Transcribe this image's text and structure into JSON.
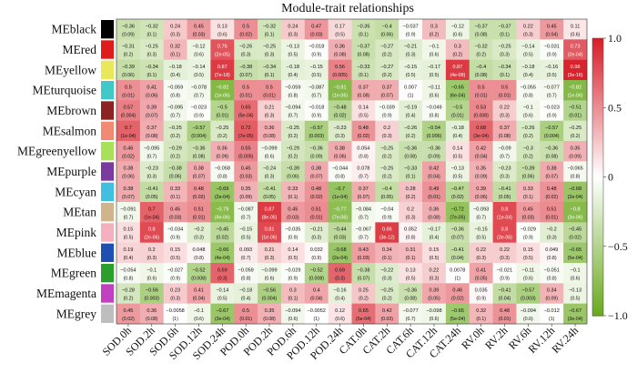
{
  "chart_data": {
    "type": "heatmap",
    "title": "Module-trait relationships",
    "rows": [
      "MEblack",
      "MEred",
      "MEyellow",
      "MEturquoise",
      "MEbrown",
      "MEsalmon",
      "MEgreenyellow",
      "MEpurple",
      "MEcyan",
      "MEtan",
      "MEpink",
      "MEblue",
      "MEgreen",
      "MEmagenta",
      "MEgrey"
    ],
    "row_colors": [
      "#000000",
      "#e01b1b",
      "#e8e85a",
      "#40c8c8",
      "#8b2323",
      "#f08a72",
      "#a8e05a",
      "#7a3aa0",
      "#40c0e0",
      "#d2b48c",
      "#f5b0c0",
      "#1f4fb0",
      "#2aa02a",
      "#c040c0",
      "#bebebe"
    ],
    "columns": [
      "SOD.0h",
      "SOD.2h",
      "SOD.6h",
      "SOD.12h",
      "SOD.24h",
      "POD.0h",
      "POD.2h",
      "POD.6h",
      "POD.12h",
      "POD.24h",
      "CAT.0h",
      "CAT.2h",
      "CAT.6h",
      "CAT.12h",
      "CAT.24h",
      "RV.0h",
      "RV.2h",
      "RV.6h",
      "RV.12h",
      "RV.24h"
    ],
    "values": [
      [
        -0.36,
        -0.32,
        0.24,
        0.45,
        0.13,
        0.5,
        -0.32,
        0.24,
        0.47,
        0.17,
        -0.35,
        -0.4,
        -0.037,
        0.3,
        -0.12,
        -0.37,
        -0.37,
        0.22,
        0.45,
        0.11
      ],
      [
        -0.31,
        -0.25,
        0.32,
        -0.12,
        0.76,
        -0.26,
        -0.25,
        -0.13,
        -0.018,
        0.36,
        -0.37,
        -0.27,
        -0.21,
        -0.1,
        0.3,
        -0.32,
        -0.25,
        -0.14,
        -0.031,
        0.73
      ],
      [
        -0.39,
        -0.34,
        -0.18,
        -0.14,
        0.87,
        -0.38,
        -0.34,
        -0.18,
        -0.15,
        0.56,
        -0.33,
        -0.27,
        -0.15,
        -0.17,
        0.87,
        -0.4,
        -0.34,
        -0.18,
        -0.16,
        0.98
      ],
      [
        0.5,
        0.41,
        -0.059,
        -0.078,
        -0.82,
        0.5,
        0.5,
        -0.059,
        -0.087,
        -0.81,
        0.37,
        0.37,
        0.007,
        -0.11,
        -0.65,
        0.5,
        0.5,
        -0.055,
        -0.077,
        -0.82
      ],
      [
        0.57,
        0.39,
        -0.095,
        -0.023,
        -0.5,
        0.65,
        0.21,
        -0.094,
        -0.018,
        -0.48,
        0.14,
        -0.039,
        -0.19,
        -0.049,
        -0.5,
        0.53,
        0.22,
        -0.1,
        -0.023,
        -0.51
      ],
      [
        0.7,
        0.37,
        -0.25,
        -0.57,
        -0.25,
        0.72,
        0.36,
        -0.25,
        -0.57,
        -0.23,
        0.48,
        0.2,
        -0.26,
        -0.54,
        -0.18,
        0.68,
        0.37,
        -0.26,
        -0.57,
        -0.25
      ],
      [
        0.46,
        -0.095,
        -0.29,
        -0.36,
        0.36,
        0.55,
        -0.099,
        -0.29,
        -0.36,
        0.38,
        0.054,
        -0.25,
        -0.36,
        -0.36,
        0.14,
        0.42,
        -0.09,
        -0.3,
        -0.36,
        0.35
      ],
      [
        0.38,
        -0.23,
        -0.38,
        0.38,
        -0.058,
        0.45,
        -0.24,
        -0.39,
        0.38,
        -0.044,
        0.078,
        -0.25,
        -0.33,
        0.42,
        -0.13,
        0.35,
        -0.23,
        -0.39,
        0.38,
        -0.065
      ],
      [
        0.38,
        -0.41,
        0.33,
        0.48,
        -0.69,
        0.35,
        -0.41,
        0.33,
        0.48,
        -0.7,
        0.37,
        -0.4,
        0.28,
        0.49,
        -0.47,
        0.39,
        -0.41,
        0.33,
        0.48,
        -0.68
      ],
      [
        -0.091,
        0.7,
        0.45,
        0.51,
        -0.79,
        -0.087,
        0.87,
        0.45,
        0.51,
        -0.77,
        -0.084,
        -0.04,
        0.2,
        0.36,
        -0.72,
        -0.093,
        0.8,
        0.45,
        0.51,
        -0.8
      ],
      [
        0.15,
        0.8,
        -0.034,
        -0.2,
        -0.45,
        -0.15,
        0.81,
        -0.035,
        -0.21,
        -0.44,
        -0.067,
        0.86,
        0.052,
        -0.17,
        -0.36,
        -0.15,
        0.8,
        -0.029,
        -0.2,
        -0.45
      ],
      [
        0.19,
        0.2,
        0.15,
        0.048,
        -0.66,
        0.093,
        0.21,
        0.14,
        0.032,
        -0.68,
        0.43,
        0.34,
        0.31,
        0.15,
        -0.41,
        0.22,
        0.22,
        0.15,
        0.049,
        -0.65
      ],
      [
        -0.054,
        -0.1,
        -0.027,
        -0.52,
        0.69,
        -0.059,
        -0.099,
        -0.029,
        -0.52,
        0.69,
        -0.38,
        -0.22,
        0.13,
        0.22,
        0.0078,
        0.41,
        -0.021,
        -0.11,
        -0.051,
        -0.1
      ],
      [
        -0.28,
        -0.56,
        0.23,
        0.41,
        -0.14,
        -0.18,
        -0.56,
        0.3,
        0.4,
        -0.16,
        0.25,
        -0.25,
        -0.36,
        0.39,
        0.46,
        0.035,
        -0.41,
        -0.57,
        0.34,
        -0.13
      ],
      [
        0.45,
        0.36,
        -0.0058,
        -0.1,
        -0.67,
        0.5,
        0.35,
        -0.094,
        -0.0052,
        0.12,
        0.65,
        0.42,
        -0.077,
        -0.098,
        -0.65,
        0.32,
        0.48,
        -0.094,
        -0.012,
        -0.67
      ]
    ],
    "pvalues": [
      [
        "(0.09)",
        "(0.1)",
        "(0.3)",
        "(0.03)",
        "(0.6)",
        "(0.02)",
        "(0.1)",
        "(0.3)",
        "(0.03)",
        "(0.5)",
        "(0.1)",
        "(0.06)",
        "(0.9)",
        "(0.2)",
        "(0.6)",
        "(0.08)",
        "(0.1)",
        "(0.3)",
        "(0.04)",
        "(0.6)"
      ],
      [
        "(0.2)",
        "(0.3)",
        "(0.1)",
        "(0.6)",
        "(2e-05)",
        "(0.3)",
        "(0.3)",
        "(0.5)",
        "(0.9)",
        "(0.08)",
        "(0.08)",
        "(0.2)",
        "(0.3)",
        "(0.6)",
        "(0.2)",
        "(0.2)",
        "(0.3)",
        "(0.5)",
        "(0.9)",
        "(2e-04)"
      ],
      [
        "(0.06)",
        "(0.1)",
        "(0.4)",
        "(0.5)",
        "(7e-18)",
        "(0.07)",
        "(0.1)",
        "(0.4)",
        "(0.5)",
        "(0.005)",
        "(0.1)",
        "(0.2)",
        "(0.5)",
        "(0.5)",
        "(4e-08)",
        "(0.08)",
        "(0.1)",
        "(0.4)",
        "(0.5)",
        "(3e-16)"
      ],
      [
        "(0.01)",
        "(0.06)",
        "(0.8)",
        "(0.7)",
        "(1e-06)",
        "(0.01)",
        "(0.01)",
        "(0.8)",
        "(0.7)",
        "(1e-06)",
        "(0.08)",
        "(0.07)",
        "(1)",
        "(0.6)",
        "(6e-04)",
        "(0.01)",
        "(0.01)",
        "(0.8)",
        "(0.7)",
        "(1e-06)"
      ],
      [
        "(0.004)",
        "(0.07)",
        "(0.7)",
        "(0.9)",
        "(0.01)",
        "(5e-04)",
        "(0.3)",
        "(0.7)",
        "(0.9)",
        "(0.02)",
        "(0.5)",
        "(0.9)",
        "(0.4)",
        "(0.8)",
        "(0.01)",
        "(0.008)",
        "(0.3)",
        "(0.6)",
        "(0.9)",
        "(0.01)"
      ],
      [
        "(1e-04)",
        "(0.08)",
        "(0.2)",
        "(0.004)",
        "(0.2)",
        "(7e-05)",
        "(0.08)",
        "(0.2)",
        "(0.003)",
        "(0.3)",
        "(0.02)",
        "(0.3)",
        "(0.2)",
        "(0.006)",
        "(0.4)",
        "(3e-04)",
        "(0.08)",
        "(0.2)",
        "(0.004)",
        "(0.2)"
      ],
      [
        "(0.02)",
        "(0.7)",
        "(0.2)",
        "(0.08)",
        "(0.09)",
        "(0.005)",
        "(0.6)",
        "(0.2)",
        "(0.09)",
        "(0.06)",
        "(0.8)",
        "(0.2)",
        "(0.08)",
        "(0.09)",
        "(0.5)",
        "(0.04)",
        "(0.7)",
        "(0.2)",
        "(0.08)",
        "(0.09)"
      ],
      [
        "(0.06)",
        "(0.3)",
        "(0.06)",
        "(0.07)",
        "(0.8)",
        "(0.03)",
        "(0.3)",
        "(0.06)",
        "(0.07)",
        "(0.8)",
        "(0.7)",
        "(0.2)",
        "(0.1)",
        "(0.04)",
        "(0.5)",
        "(0.09)",
        "(0.3)",
        "(0.06)",
        "(0.07)",
        "(0.8)"
      ],
      [
        "(0.07)",
        "(0.05)",
        "(0.1)",
        "(0.02)",
        "(2e-04)",
        "(0.09)",
        "(0.05)",
        "(0.1)",
        "(0.02)",
        "(1e-04)",
        "(0.07)",
        "(0.05)",
        "(0.2)",
        "(0.01)",
        "(0.02)",
        "(0.06)",
        "(0.05)",
        "(0.1)",
        "(0.02)",
        "(2e-04)"
      ],
      [
        "(0.7)",
        "(1e-04)",
        "(0.03)",
        "(0.01)",
        "(4e-06)",
        "(0.7)",
        "(8e-05)",
        "(0.03)",
        "(0.01)",
        "(7e-06)",
        "(0.7)",
        "(0.9)",
        "(0.3)",
        "(0.08)",
        "(7e-05)",
        "(0.7)",
        "(1e-04)",
        "(0.03)",
        "(0.01)",
        "(3e-06)"
      ],
      [
        "(0.5)",
        "(2e-06)",
        "(0.9)",
        "(0.3)",
        "(0.02)",
        "(0.5)",
        "(1e-06)",
        "(0.9)",
        "(0.3)",
        "(0.03)",
        "(0.7)",
        "(3e-12)",
        "(0.8)",
        "(0.4)",
        "(0.07)",
        "(0.5)",
        "(3e-06)",
        "(0.9)",
        "(0.3)",
        "(0.02)"
      ],
      [
        "(0.4)",
        "(0.3)",
        "(0.5)",
        "(0.8)",
        "(4e-04)",
        "(0.7)",
        "(0.3)",
        "(0.5)",
        "(0.9)",
        "(2e-04)",
        "(0.03)",
        "(0.1)",
        "(0.1)",
        "(0.5)",
        "(0.04)",
        "(0.3)",
        "(0.3)",
        "(0.5)",
        "(0.8)",
        "(5e-04)"
      ],
      [
        "(0.8)",
        "(0.6)",
        "(0.9)",
        "(0.008)",
        "(0.3)",
        "(0.8)",
        "(0.6)",
        "(0.9)",
        "(0.008)",
        "(0.3)",
        "(0.07)",
        "(0.3)",
        "(0.5)",
        "(0.3)",
        "(1)",
        "(0.05)",
        "(0.9)",
        "(0.6)",
        "(0.8)",
        "(0.6)"
      ],
      [
        "(0.2)",
        "(0.003)",
        "(0.3)",
        "(0.04)",
        "(0.5)",
        "(0.4)",
        "(0.004)",
        "(0.1)",
        "(0.04)",
        "(0.4)",
        "(0.2)",
        "(0.2)",
        "(0.08)",
        "(0.05)",
        "(0.02)",
        "(0.9)",
        "(0.04)",
        "(0.003)",
        "(0.09)",
        "(0.5)"
      ],
      [
        "(0.02)",
        "(0.08)",
        "(1)",
        "(0.6)",
        "(3e-04)",
        "(0.01)",
        "(0.08)",
        "(0.6)",
        "(1)",
        "(0.6)",
        "(5e-04)",
        "(0.03)",
        "(0.7)",
        "(0.6)",
        "(5e-04)",
        "(0.1)",
        "(0.01)",
        "(0.6)",
        "(1)",
        "(3e-04)"
      ]
    ],
    "colorbar": {
      "range": [
        -1,
        1
      ],
      "ticks": [
        "1.0",
        "0.5",
        "0",
        "−0.5",
        "−1.0"
      ],
      "low_color": "#6aaa1e",
      "mid_color": "#ffffff",
      "high_color": "#d81e28"
    }
  }
}
